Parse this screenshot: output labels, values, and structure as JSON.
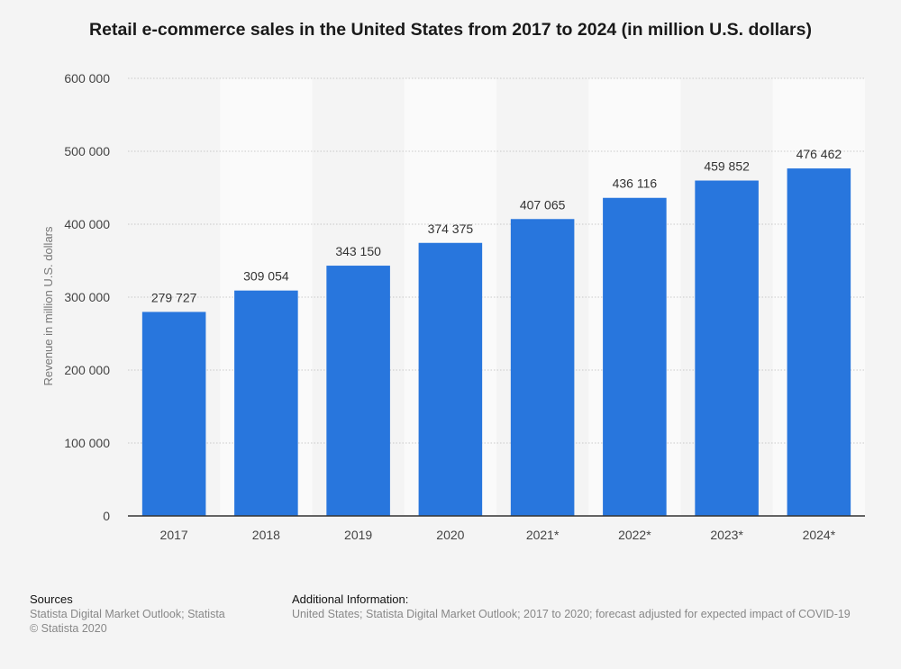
{
  "chart_data": {
    "type": "bar",
    "title": "Retail e-commerce sales in the United States from 2017 to 2024 (in million U.S. dollars)",
    "xlabel": "",
    "ylabel": "Revenue in million U.S. dollars",
    "categories": [
      "2017",
      "2018",
      "2019",
      "2020",
      "2021*",
      "2022*",
      "2023*",
      "2024*"
    ],
    "values": [
      279727,
      309054,
      343150,
      374375,
      407065,
      436116,
      459852,
      476462
    ],
    "value_labels": [
      "279 727",
      "309 054",
      "343 150",
      "374 375",
      "407 065",
      "436 116",
      "459 852",
      "476 462"
    ],
    "ylim": [
      0,
      600000
    ],
    "yticks": [
      0,
      100000,
      200000,
      300000,
      400000,
      500000,
      600000
    ],
    "ytick_labels": [
      "0",
      "100 000",
      "200 000",
      "300 000",
      "400 000",
      "500 000",
      "600 000"
    ],
    "grid": true,
    "legend": "none",
    "bar_color": "#2876dd"
  },
  "footer": {
    "sources_heading": "Sources",
    "sources_lines": [
      "Statista Digital Market Outlook; Statista",
      "© Statista 2020"
    ],
    "additional_heading": "Additional Information:",
    "additional_text": "United States; Statista Digital Market Outlook; 2017 to 2020; forecast adjusted for expected impact of COVID-19"
  }
}
